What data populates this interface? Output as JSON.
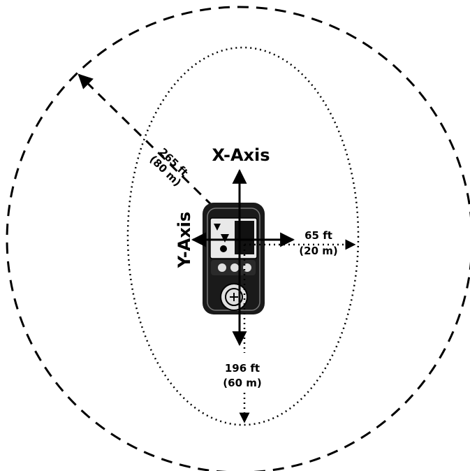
{
  "axes": {
    "x_axis_label": "X-Axis",
    "y_axis_label": "Y-Axis"
  },
  "ranges": {
    "outer_circle": {
      "line1": "265 ft",
      "line2": "(80 m)"
    },
    "side": {
      "line1": "65 ft",
      "line2": "(20 m)"
    },
    "bottom": {
      "line1": "196 ft",
      "line2": "(60 m)"
    }
  },
  "colors": {
    "ink": "#000000",
    "background": "#ffffff",
    "device_body": "#1a1a1a",
    "screen": "#e9e9e9"
  },
  "icons": [
    "remote-control-device-icon"
  ]
}
